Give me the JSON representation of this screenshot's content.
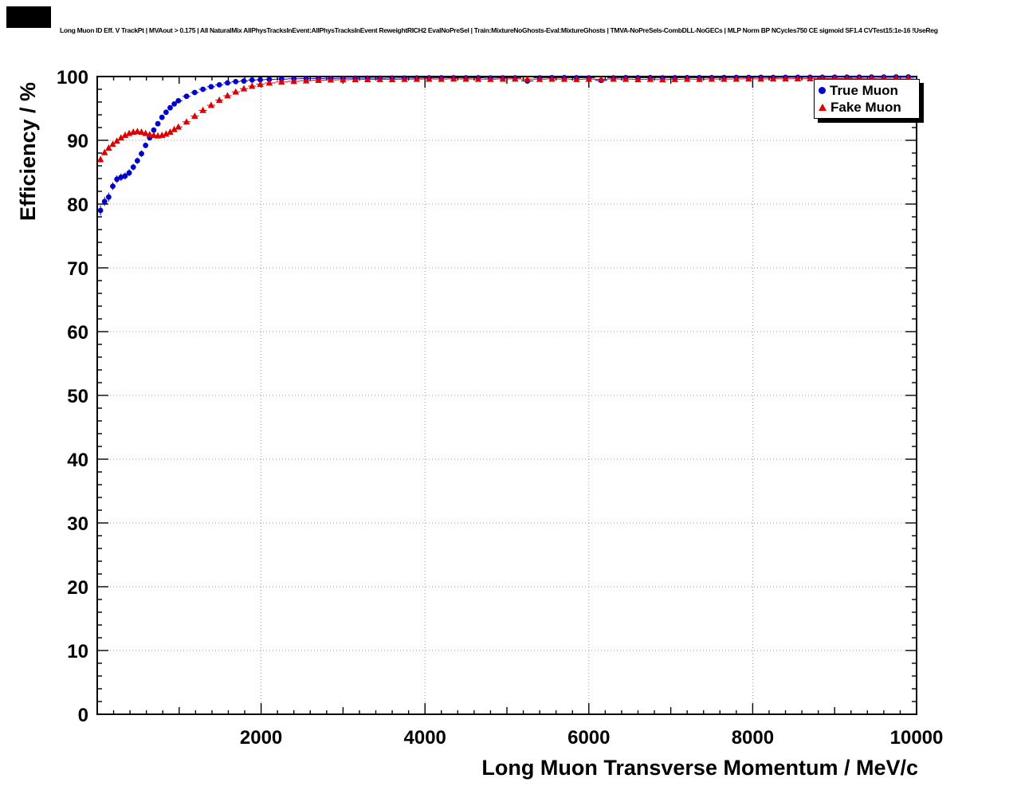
{
  "chart_data": {
    "type": "scatter",
    "title": "Long Muon ID Eff. V TrackPt | MVAout > 0.175 | All NaturalMix AllPhysTracksInEvent:AllPhysTracksInEvent ReweightRICH2 EvalNoPreSel | Train:MixtureNoGhosts-Eval:MixtureGhosts | TMVA-NoPreSels-CombDLL-NoGECs | MLP Norm BP NCycles750 CE sigmoid SF1.4 CVTest15:1e-16 !UseReg",
    "xlabel": "Long Muon Transverse Momentum / MeV/c",
    "ylabel": "Efficiency / %",
    "xlim": [
      0,
      10000
    ],
    "ylim": [
      0,
      100
    ],
    "x_ticks": [
      2000,
      4000,
      6000,
      8000,
      10000
    ],
    "y_ticks": [
      0,
      10,
      20,
      30,
      40,
      50,
      60,
      70,
      80,
      90,
      100
    ],
    "grid": true,
    "grid_color": "#999999",
    "frame_color": "#000000",
    "background_color": "#ffffff",
    "legend": {
      "position": "top-right",
      "items": [
        {
          "label": "True Muon",
          "marker": "circle",
          "color": "#0000cc"
        },
        {
          "label": "Fake Muon",
          "marker": "triangle",
          "color": "#dd0000"
        }
      ]
    },
    "series": [
      {
        "name": "True Muon",
        "marker": "circle",
        "color": "#0000cc",
        "points": [
          [
            40,
            79.0,
            0.8
          ],
          [
            90,
            80.4,
            0.7
          ],
          [
            140,
            81.1,
            0.7
          ],
          [
            190,
            82.8,
            0.6
          ],
          [
            240,
            83.9,
            0.6
          ],
          [
            290,
            84.2,
            0.6
          ],
          [
            340,
            84.4,
            0.55
          ],
          [
            390,
            84.9,
            0.55
          ],
          [
            440,
            85.8,
            0.5
          ],
          [
            490,
            86.8,
            0.5
          ],
          [
            540,
            87.9,
            0.5
          ],
          [
            590,
            89.2,
            0.45
          ],
          [
            640,
            90.4,
            0.45
          ],
          [
            690,
            91.6,
            0.4
          ],
          [
            740,
            92.6,
            0.4
          ],
          [
            790,
            93.6,
            0.35
          ],
          [
            840,
            94.4,
            0.35
          ],
          [
            890,
            95.1,
            0.3
          ],
          [
            940,
            95.7,
            0.3
          ],
          [
            990,
            96.2,
            0.3
          ],
          [
            1090,
            96.9,
            0.25
          ],
          [
            1190,
            97.5,
            0.22
          ],
          [
            1290,
            98.0,
            0.2
          ],
          [
            1390,
            98.4,
            0.18
          ],
          [
            1490,
            98.7,
            0.16
          ],
          [
            1590,
            99.0,
            0.15
          ],
          [
            1690,
            99.2,
            0.13
          ],
          [
            1790,
            99.3,
            0.12
          ],
          [
            1890,
            99.45,
            0.1
          ],
          [
            1990,
            99.5,
            0.1
          ],
          [
            2100,
            99.55,
            0.09
          ],
          [
            2250,
            99.6,
            0.09
          ],
          [
            2400,
            99.65,
            0.09
          ],
          [
            2550,
            99.68,
            0.08
          ],
          [
            2700,
            99.7,
            0.08
          ],
          [
            2850,
            99.72,
            0.08
          ],
          [
            3000,
            99.73,
            0.08
          ],
          [
            3150,
            99.74,
            0.08
          ],
          [
            3300,
            99.75,
            0.08
          ],
          [
            3450,
            99.74,
            0.08
          ],
          [
            3600,
            99.76,
            0.08
          ],
          [
            3750,
            99.77,
            0.08
          ],
          [
            3900,
            99.78,
            0.08
          ],
          [
            4050,
            99.79,
            0.08
          ],
          [
            4200,
            99.8,
            0.08
          ],
          [
            4350,
            99.81,
            0.08
          ],
          [
            4500,
            99.79,
            0.08
          ],
          [
            4650,
            99.81,
            0.08
          ],
          [
            4800,
            99.78,
            0.08
          ],
          [
            4950,
            99.8,
            0.08
          ],
          [
            5100,
            99.8,
            0.08
          ],
          [
            5250,
            99.3,
            0.15
          ],
          [
            5400,
            99.8,
            0.08
          ],
          [
            5550,
            99.82,
            0.08
          ],
          [
            5700,
            99.82,
            0.08
          ],
          [
            5850,
            99.81,
            0.08
          ],
          [
            6000,
            99.8,
            0.08
          ],
          [
            6150,
            99.4,
            0.15
          ],
          [
            6300,
            99.8,
            0.08
          ],
          [
            6450,
            99.83,
            0.08
          ],
          [
            6600,
            99.81,
            0.08
          ],
          [
            6750,
            99.82,
            0.08
          ],
          [
            6900,
            99.79,
            0.08
          ],
          [
            7050,
            99.81,
            0.08
          ],
          [
            7200,
            99.83,
            0.08
          ],
          [
            7350,
            99.82,
            0.08
          ],
          [
            7500,
            99.83,
            0.08
          ],
          [
            7650,
            99.84,
            0.07
          ],
          [
            7800,
            99.85,
            0.07
          ],
          [
            7950,
            99.85,
            0.07
          ],
          [
            8100,
            99.87,
            0.07
          ],
          [
            8250,
            99.86,
            0.07
          ],
          [
            8400,
            99.87,
            0.07
          ],
          [
            8550,
            99.88,
            0.07
          ],
          [
            8700,
            99.89,
            0.06
          ],
          [
            8850,
            99.89,
            0.06
          ],
          [
            9000,
            99.9,
            0.06
          ],
          [
            9150,
            99.9,
            0.06
          ],
          [
            9300,
            99.91,
            0.06
          ],
          [
            9450,
            99.92,
            0.06
          ],
          [
            9600,
            99.92,
            0.06
          ],
          [
            9750,
            99.93,
            0.05
          ],
          [
            9900,
            99.94,
            0.05
          ]
        ]
      },
      {
        "name": "Fake Muon",
        "marker": "triangle",
        "color": "#dd0000",
        "points": [
          [
            40,
            87.0,
            0.5
          ],
          [
            90,
            88.1,
            0.45
          ],
          [
            140,
            88.8,
            0.4
          ],
          [
            190,
            89.4,
            0.4
          ],
          [
            240,
            89.9,
            0.38
          ],
          [
            290,
            90.4,
            0.35
          ],
          [
            340,
            90.8,
            0.33
          ],
          [
            390,
            91.1,
            0.32
          ],
          [
            440,
            91.3,
            0.3
          ],
          [
            490,
            91.4,
            0.3
          ],
          [
            540,
            91.3,
            0.3
          ],
          [
            590,
            91.1,
            0.3
          ],
          [
            640,
            90.9,
            0.3
          ],
          [
            690,
            90.8,
            0.3
          ],
          [
            740,
            90.7,
            0.3
          ],
          [
            790,
            90.8,
            0.3
          ],
          [
            840,
            91.0,
            0.3
          ],
          [
            890,
            91.3,
            0.28
          ],
          [
            940,
            91.7,
            0.28
          ],
          [
            990,
            92.1,
            0.26
          ],
          [
            1090,
            92.9,
            0.24
          ],
          [
            1190,
            93.8,
            0.22
          ],
          [
            1290,
            94.7,
            0.2
          ],
          [
            1390,
            95.5,
            0.18
          ],
          [
            1490,
            96.3,
            0.16
          ],
          [
            1590,
            97.0,
            0.15
          ],
          [
            1690,
            97.6,
            0.13
          ],
          [
            1790,
            98.1,
            0.12
          ],
          [
            1890,
            98.5,
            0.1
          ],
          [
            1990,
            98.8,
            0.1
          ],
          [
            2100,
            99.0,
            0.09
          ],
          [
            2250,
            99.15,
            0.09
          ],
          [
            2400,
            99.25,
            0.08
          ],
          [
            2550,
            99.35,
            0.08
          ],
          [
            2700,
            99.42,
            0.08
          ],
          [
            2850,
            99.48,
            0.07
          ],
          [
            3000,
            99.5,
            0.07
          ],
          [
            3150,
            99.53,
            0.07
          ],
          [
            3300,
            99.55,
            0.07
          ],
          [
            3450,
            99.57,
            0.07
          ],
          [
            3600,
            99.55,
            0.07
          ],
          [
            3750,
            99.58,
            0.07
          ],
          [
            3900,
            99.6,
            0.07
          ],
          [
            4050,
            99.62,
            0.07
          ],
          [
            4200,
            99.6,
            0.07
          ],
          [
            4350,
            99.63,
            0.07
          ],
          [
            4500,
            99.61,
            0.07
          ],
          [
            4650,
            99.6,
            0.07
          ],
          [
            4800,
            99.58,
            0.07
          ],
          [
            4950,
            99.62,
            0.07
          ],
          [
            5100,
            99.63,
            0.07
          ],
          [
            5250,
            99.6,
            0.07
          ],
          [
            5400,
            99.58,
            0.07
          ],
          [
            5550,
            99.62,
            0.07
          ],
          [
            5700,
            99.6,
            0.07
          ],
          [
            5850,
            99.57,
            0.07
          ],
          [
            6000,
            99.6,
            0.07
          ],
          [
            6150,
            99.58,
            0.07
          ],
          [
            6300,
            99.61,
            0.07
          ],
          [
            6450,
            99.59,
            0.07
          ],
          [
            6600,
            99.55,
            0.07
          ],
          [
            6750,
            99.58,
            0.07
          ],
          [
            6900,
            99.52,
            0.08
          ],
          [
            7050,
            99.56,
            0.07
          ],
          [
            7200,
            99.6,
            0.07
          ],
          [
            7350,
            99.58,
            0.07
          ],
          [
            7500,
            99.61,
            0.07
          ],
          [
            7650,
            99.6,
            0.07
          ],
          [
            7800,
            99.62,
            0.07
          ],
          [
            7950,
            99.64,
            0.07
          ],
          [
            8100,
            99.63,
            0.07
          ],
          [
            8250,
            99.65,
            0.06
          ],
          [
            8400,
            99.64,
            0.06
          ],
          [
            8550,
            99.66,
            0.06
          ],
          [
            8700,
            99.67,
            0.06
          ],
          [
            8850,
            99.68,
            0.06
          ],
          [
            9000,
            99.7,
            0.06
          ],
          [
            9150,
            99.7,
            0.06
          ],
          [
            9300,
            99.72,
            0.05
          ],
          [
            9450,
            99.72,
            0.05
          ],
          [
            9600,
            99.74,
            0.05
          ],
          [
            9750,
            99.75,
            0.05
          ],
          [
            9900,
            99.76,
            0.05
          ]
        ]
      }
    ]
  }
}
